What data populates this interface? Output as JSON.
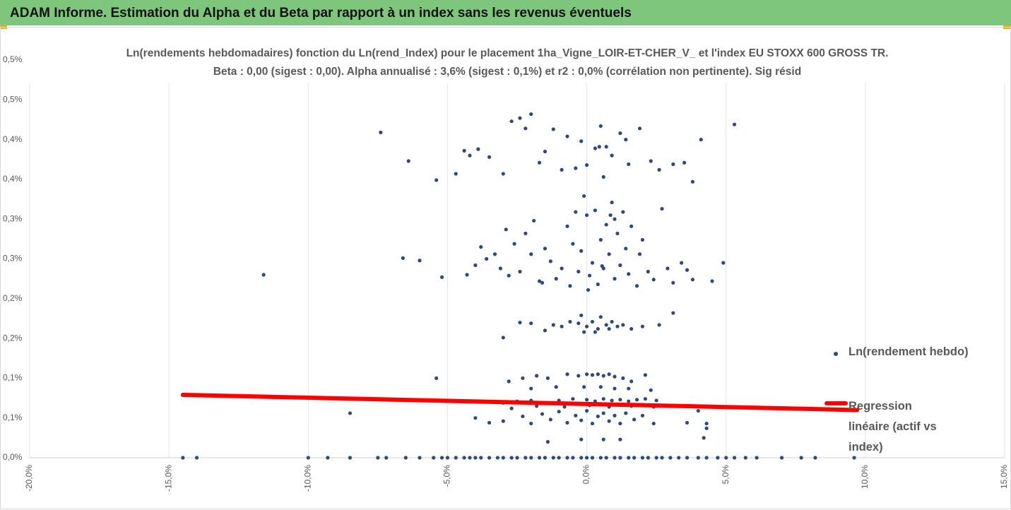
{
  "header": {
    "title": "ADAM Informe. Estimation du Alpha et du Beta par rapport à un index sans les revenus éventuels"
  },
  "chart_data": {
    "type": "scatter",
    "title": "Ln(rendements hebdomadaires) fonction du Ln(rend_Index) pour le placement 1ha_Vigne_LOIR-ET-CHER_V_ et l'index EU STOXX 600 GROSS TR.",
    "subtitle": "Beta : 0,00 (sigest : 0,00). Alpha annualisé : 3,6% (sigest : 0,1%) et r2 : 0,0% (corrélation non pertinente). Sig résid",
    "xlim": [
      -20,
      15
    ],
    "xticks": [
      {
        "value": -20,
        "label": "-20,0%"
      },
      {
        "value": -15,
        "label": "-15,0%"
      },
      {
        "value": -10,
        "label": "-10,0%"
      },
      {
        "value": -5,
        "label": "-5,0%"
      },
      {
        "value": 0,
        "label": "0,0%"
      },
      {
        "value": 5,
        "label": "5,0%"
      },
      {
        "value": 10,
        "label": "10,0%"
      },
      {
        "value": 15,
        "label": "15,0%"
      }
    ],
    "ylim": [
      0,
      0.5
    ],
    "yticks": [
      {
        "value": 0,
        "label": "0,0%"
      },
      {
        "value": 0.05,
        "label": "0,1%"
      },
      {
        "value": 0.1,
        "label": "0,1%"
      },
      {
        "value": 0.15,
        "label": "0,2%"
      },
      {
        "value": 0.2,
        "label": "0,2%"
      },
      {
        "value": 0.25,
        "label": "0,3%"
      },
      {
        "value": 0.3,
        "label": "0,3%"
      },
      {
        "value": 0.35,
        "label": "0,4%"
      },
      {
        "value": 0.4,
        "label": "0,4%"
      },
      {
        "value": 0.45,
        "label": "0,5%"
      },
      {
        "value": 0.5,
        "label": "0,5%"
      }
    ],
    "xgrid": true,
    "legend": "right",
    "series": [
      {
        "name": "Ln(rendement hebdo)",
        "type": "scatter",
        "color": "#2e4a7a",
        "x": [
          -14.5,
          -14,
          -10,
          -9.3,
          -8.5,
          -7.5,
          -7.2,
          -6.5,
          -6,
          -5.5,
          -5.2,
          -5,
          -4.7,
          -4.4,
          -4.2,
          -4,
          -3.8,
          -3.5,
          -3.2,
          -3,
          -2.7,
          -2.5,
          -2.2,
          -2,
          -1.7,
          -1.5,
          -1.2,
          -1,
          -0.7,
          -0.5,
          -0.2,
          0,
          0.2,
          0.5,
          0.7,
          1,
          1.2,
          1.5,
          1.7,
          2,
          2.2,
          2.5,
          2.7,
          3,
          3.3,
          3.6,
          4,
          4.3,
          4.7,
          5,
          5.3,
          5.7,
          6.1,
          7,
          7.7,
          8.2,
          9.6,
          -7.4,
          -6.4,
          -5.4,
          -4.7,
          -4.4,
          -4.2,
          -3.9,
          -3.5,
          -3.0,
          -2.7,
          -2.4,
          -2.2,
          -2.0,
          -1.7,
          -1.5,
          -1.2,
          -0.9,
          -0.7,
          -0.4,
          -0.2,
          0,
          0.3,
          0.5,
          0.6,
          0.7,
          0.9,
          1.2,
          1.5,
          1.9,
          2.3,
          2.6,
          3.1,
          3.5,
          3.8,
          4.1,
          5.3,
          1.4,
          0.45,
          -11.6,
          -6.6,
          -6.0,
          -5.2,
          -4.3,
          -4.0,
          -3.8,
          -3.6,
          -3.3,
          -3.1,
          -2.9,
          -2.8,
          -2.6,
          -2.4,
          -2.2,
          -2.0,
          -1.9,
          -1.7,
          -1.5,
          -1.3,
          -1.1,
          -0.9,
          -0.7,
          -0.6,
          -0.4,
          -0.3,
          -0.2,
          -0.1,
          0,
          0.1,
          0.2,
          0.3,
          0.4,
          0.5,
          0.6,
          0.7,
          0.8,
          0.9,
          1.0,
          1.1,
          1.2,
          1.3,
          1.4,
          1.5,
          1.6,
          1.8,
          1.9,
          2.0,
          2.2,
          2.4,
          2.7,
          2.9,
          3.1,
          3.4,
          3.6,
          3.8,
          4.5,
          4.9,
          -1.6,
          0.55,
          0.05,
          1.0,
          0.85,
          -0.5,
          -3.0,
          -2.4,
          -2.0,
          -1.5,
          -1.2,
          -0.9,
          -0.6,
          -0.3,
          -0.2,
          0,
          0.2,
          0.4,
          0.5,
          0.7,
          0.9,
          1.1,
          1.3,
          1.6,
          2.0,
          2.6,
          3.1,
          -0.1,
          0.3,
          0.8,
          -5.4,
          -2.8,
          -2.3,
          -1.8,
          -1.4,
          -0.7,
          -0.3,
          0,
          0.2,
          0.4,
          0.6,
          0.8,
          1.0,
          1.3,
          1.6,
          2.1,
          -0.1,
          0.5,
          1.0,
          -1.1,
          1.5,
          2.3,
          -2.0,
          -3.0,
          -2.5,
          -2.0,
          -1.5,
          -1.0,
          -0.5,
          0,
          0.3,
          0.6,
          0.9,
          1.2,
          1.5,
          1.8,
          2.1,
          2.5,
          -1.8,
          -0.8,
          0.1,
          0.8,
          1.6,
          2.4,
          -2.7,
          -4.0,
          -3.5,
          -3.0,
          -2.3,
          -2.0,
          -1.6,
          -1.3,
          -1.0,
          -0.7,
          -0.4,
          -0.2,
          0,
          0.2,
          0.4,
          0.6,
          0.8,
          1.0,
          1.2,
          1.4,
          1.7,
          2.0,
          2.4,
          3.6,
          4.0,
          4.3,
          -8.5,
          4.2,
          -1.4,
          -0.2,
          0.6,
          1.2,
          4.3
        ],
        "values": [
          0,
          0,
          0,
          0,
          0,
          0,
          0,
          0,
          0,
          0,
          0,
          0,
          0,
          0,
          0,
          0,
          0,
          0,
          0,
          0,
          0,
          0,
          0,
          0,
          0,
          0,
          0,
          0,
          0,
          0,
          0,
          0,
          0,
          0,
          0,
          0,
          0,
          0,
          0,
          0,
          0,
          0,
          0,
          0,
          0,
          0,
          0,
          0,
          0,
          0,
          0,
          0,
          0,
          0,
          0,
          0,
          0,
          0.409,
          0.373,
          0.349,
          0.357,
          0.386,
          0.38,
          0.388,
          0.378,
          0.357,
          0.423,
          0.427,
          0.414,
          0.432,
          0.371,
          0.385,
          0.413,
          0.362,
          0.404,
          0.364,
          0.398,
          0.368,
          0.389,
          0.417,
          0.353,
          0.391,
          0.38,
          0.408,
          0.369,
          0.414,
          0.373,
          0.362,
          0.369,
          0.371,
          0.347,
          0.4,
          0.419,
          0.4,
          0.391,
          0.23,
          0.251,
          0.248,
          0.227,
          0.23,
          0.242,
          0.265,
          0.25,
          0.256,
          0.238,
          0.287,
          0.229,
          0.269,
          0.234,
          0.282,
          0.256,
          0.298,
          0.222,
          0.263,
          0.247,
          0.225,
          0.238,
          0.291,
          0.216,
          0.309,
          0.234,
          0.26,
          0.329,
          0.305,
          0.229,
          0.245,
          0.311,
          0.218,
          0.274,
          0.238,
          0.293,
          0.256,
          0.321,
          0.225,
          0.282,
          0.242,
          0.309,
          0.263,
          0.231,
          0.291,
          0.216,
          0.256,
          0.274,
          0.234,
          0.224,
          0.313,
          0.238,
          0.22,
          0.245,
          0.236,
          0.224,
          0.222,
          0.245,
          0.22,
          0.241,
          0.211,
          0.3,
          0.305,
          0.269,
          0.151,
          0.17,
          0.169,
          0.16,
          0.167,
          0.165,
          0.171,
          0.169,
          0.179,
          0.165,
          0.171,
          0.162,
          0.177,
          0.167,
          0.171,
          0.165,
          0.167,
          0.162,
          0.165,
          0.167,
          0.182,
          0.158,
          0.158,
          0.162,
          0.1,
          0.096,
          0.1,
          0.103,
          0.1,
          0.105,
          0.103,
          0.105,
          0.104,
          0.105,
          0.103,
          0.105,
          0.102,
          0.1,
          0.096,
          0.104,
          0.089,
          0.089,
          0.087,
          0.089,
          0.087,
          0.085,
          0.087,
          0.069,
          0.071,
          0.072,
          0.069,
          0.072,
          0.074,
          0.073,
          0.071,
          0.074,
          0.072,
          0.073,
          0.071,
          0.073,
          0.074,
          0.072,
          0.065,
          0.064,
          0.066,
          0.064,
          0.065,
          0.064,
          0.062,
          0.05,
          0.044,
          0.046,
          0.052,
          0.043,
          0.055,
          0.048,
          0.058,
          0.044,
          0.053,
          0.047,
          0.059,
          0.043,
          0.052,
          0.056,
          0.046,
          0.053,
          0.043,
          0.056,
          0.048,
          0.053,
          0.043,
          0.044,
          0.059,
          0.043,
          0.056,
          0.025,
          0.02,
          0.023,
          0.023,
          0.023,
          0.037
        ]
      },
      {
        "name": "Regression linéaire (actif vs index)",
        "type": "line",
        "color": "#ff0000",
        "x": [
          -14.5,
          9.7
        ],
        "values": [
          0.079,
          0.06
        ]
      }
    ]
  }
}
